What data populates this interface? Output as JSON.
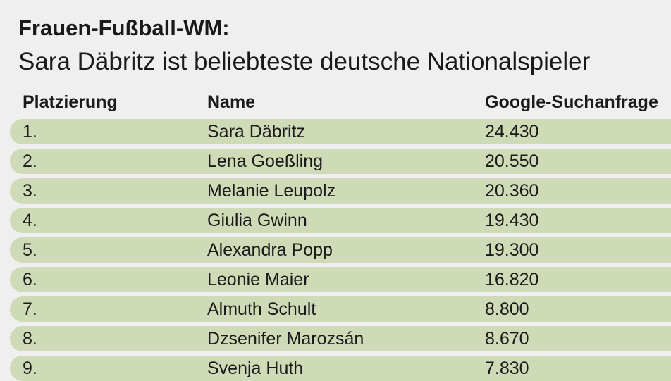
{
  "header": {
    "title": "Frauen-Fußball-WM:",
    "subtitle": "Sara Däbritz ist beliebteste deutsche Nationalspieler"
  },
  "table": {
    "columns": [
      "Platzierung",
      "Name",
      "Google-Suchanfrage"
    ],
    "rows": [
      [
        "1.",
        "Sara Däbritz",
        "24.430"
      ],
      [
        "2.",
        "Lena Goeßling",
        "20.550"
      ],
      [
        "3.",
        "Melanie Leupolz",
        "20.360"
      ],
      [
        "4.",
        "Giulia Gwinn",
        "19.430"
      ],
      [
        "5.",
        "Alexandra Popp",
        "19.300"
      ],
      [
        "6.",
        "Leonie Maier",
        "16.820"
      ],
      [
        "7.",
        "Almuth Schult",
        "8.800"
      ],
      [
        "8.",
        "Dzsenifer Marozsán",
        "8.670"
      ],
      [
        "9.",
        "Svenja Huth",
        "7.830"
      ]
    ]
  }
}
